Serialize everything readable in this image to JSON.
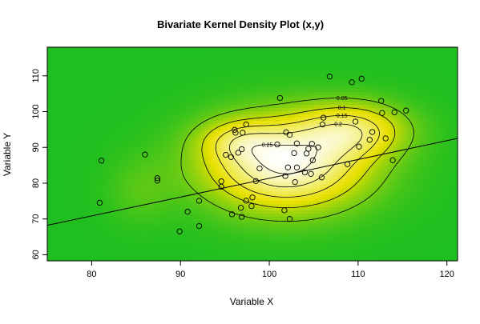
{
  "chart_data": {
    "type": "scatter",
    "title": "Bivariate Kernel Density Plot (x,y)",
    "xlabel": "Variable X",
    "ylabel": "Variable Y",
    "xlim": [
      75,
      121.2
    ],
    "ylim": [
      58.3,
      118
    ],
    "x_ticks": [
      "80",
      "90",
      "100",
      "110",
      "120"
    ],
    "y_ticks": [
      "60",
      "70",
      "80",
      "90",
      "100",
      "110"
    ],
    "contour_labels": [
      "0.05",
      "0.1",
      "0.15",
      "0.2",
      "0.25"
    ],
    "regression_line": {
      "intercept": 28.8,
      "slope": 0.5256
    },
    "density": {
      "components": [
        {
          "mx": 101.9,
          "my": 85.3,
          "sx": 6.3,
          "sy": 8.8,
          "w": 1.0
        },
        {
          "mx": 109.5,
          "my": 95.0,
          "sx": 4.2,
          "sy": 5.2,
          "w": 0.55
        },
        {
          "mx": 85.5,
          "my": 78.0,
          "sx": 2.6,
          "sy": 6.5,
          "w": 0.12
        },
        {
          "mx": 96.5,
          "my": 92.0,
          "sx": 3.0,
          "sy": 4.0,
          "w": 0.3
        }
      ],
      "color_low": "#1fbf1f",
      "color_mid": "#e8e000",
      "color_high": "#ffffff"
    },
    "points": [
      {
        "x": 81.1,
        "y": 86.3
      },
      {
        "x": 80.9,
        "y": 74.5
      },
      {
        "x": 86.0,
        "y": 88.0
      },
      {
        "x": 87.4,
        "y": 81.4
      },
      {
        "x": 87.4,
        "y": 80.7
      },
      {
        "x": 89.9,
        "y": 66.5
      },
      {
        "x": 90.8,
        "y": 72.0
      },
      {
        "x": 92.1,
        "y": 75.1
      },
      {
        "x": 92.1,
        "y": 68.0
      },
      {
        "x": 94.6,
        "y": 80.5
      },
      {
        "x": 94.6,
        "y": 79.0
      },
      {
        "x": 95.1,
        "y": 87.9
      },
      {
        "x": 95.7,
        "y": 87.3
      },
      {
        "x": 95.8,
        "y": 71.3
      },
      {
        "x": 96.1,
        "y": 94.9
      },
      {
        "x": 96.2,
        "y": 94.1
      },
      {
        "x": 96.5,
        "y": 88.5
      },
      {
        "x": 96.8,
        "y": 73.1
      },
      {
        "x": 96.9,
        "y": 70.6
      },
      {
        "x": 97.0,
        "y": 94.1
      },
      {
        "x": 96.9,
        "y": 89.5
      },
      {
        "x": 97.4,
        "y": 96.4
      },
      {
        "x": 97.4,
        "y": 75.1
      },
      {
        "x": 98.0,
        "y": 73.6
      },
      {
        "x": 98.1,
        "y": 76.0
      },
      {
        "x": 98.5,
        "y": 80.6
      },
      {
        "x": 98.9,
        "y": 84.1
      },
      {
        "x": 101.2,
        "y": 103.8
      },
      {
        "x": 100.9,
        "y": 90.8
      },
      {
        "x": 101.7,
        "y": 72.4
      },
      {
        "x": 101.8,
        "y": 82.0
      },
      {
        "x": 101.9,
        "y": 94.2
      },
      {
        "x": 102.1,
        "y": 84.4
      },
      {
        "x": 102.3,
        "y": 93.5
      },
      {
        "x": 102.3,
        "y": 70.0
      },
      {
        "x": 102.8,
        "y": 88.4
      },
      {
        "x": 102.9,
        "y": 80.3
      },
      {
        "x": 103.1,
        "y": 84.4
      },
      {
        "x": 103.1,
        "y": 91.1
      },
      {
        "x": 104.0,
        "y": 83.0
      },
      {
        "x": 104.2,
        "y": 88.3
      },
      {
        "x": 104.4,
        "y": 89.6
      },
      {
        "x": 104.7,
        "y": 82.6
      },
      {
        "x": 104.8,
        "y": 91.0
      },
      {
        "x": 104.9,
        "y": 86.4
      },
      {
        "x": 105.5,
        "y": 90.0
      },
      {
        "x": 105.9,
        "y": 81.6
      },
      {
        "x": 106.0,
        "y": 96.4
      },
      {
        "x": 106.1,
        "y": 98.3
      },
      {
        "x": 106.8,
        "y": 109.8
      },
      {
        "x": 108.8,
        "y": 85.3
      },
      {
        "x": 109.3,
        "y": 108.2
      },
      {
        "x": 109.7,
        "y": 97.2
      },
      {
        "x": 110.1,
        "y": 90.2
      },
      {
        "x": 110.4,
        "y": 109.2
      },
      {
        "x": 111.3,
        "y": 92.1
      },
      {
        "x": 111.6,
        "y": 94.3
      },
      {
        "x": 112.6,
        "y": 103.0
      },
      {
        "x": 112.7,
        "y": 99.6
      },
      {
        "x": 113.1,
        "y": 92.5
      },
      {
        "x": 113.9,
        "y": 86.4
      },
      {
        "x": 114.1,
        "y": 99.8
      },
      {
        "x": 115.4,
        "y": 100.3
      }
    ]
  }
}
